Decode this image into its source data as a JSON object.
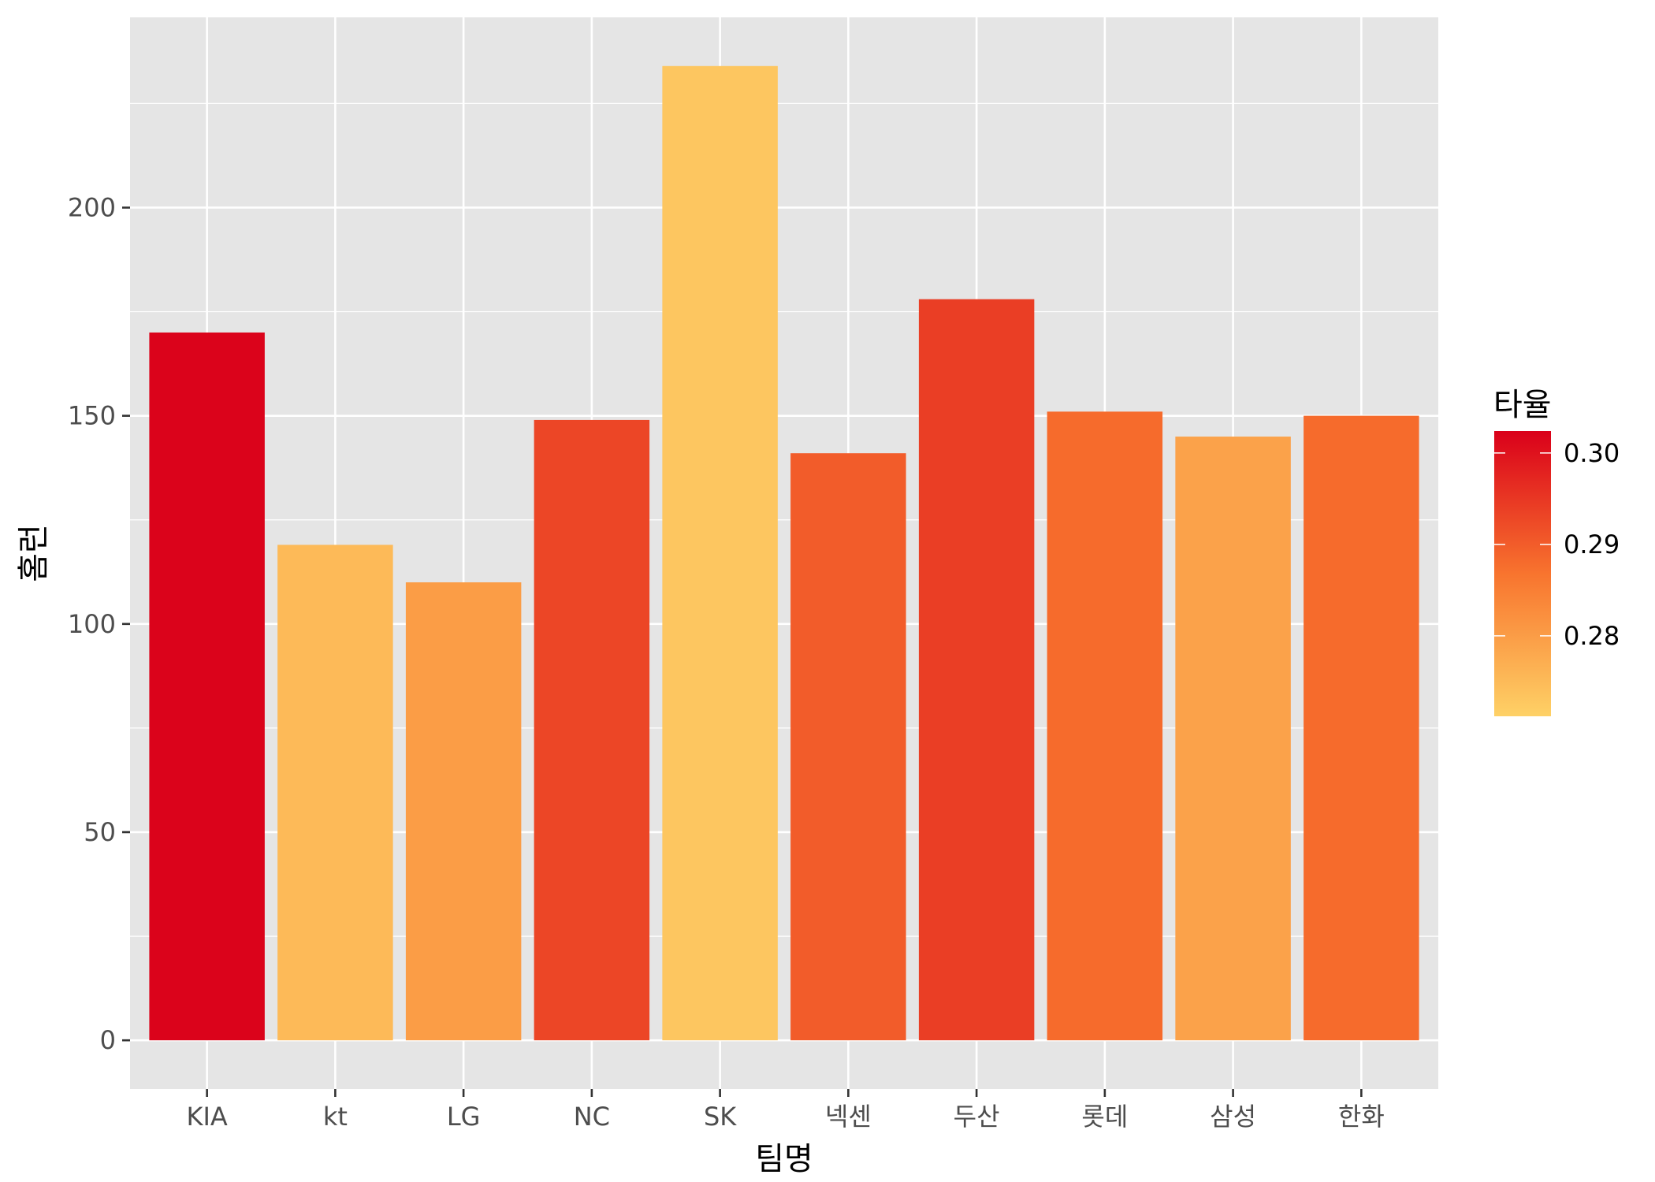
{
  "chart_data": {
    "type": "bar",
    "categories": [
      "KIA",
      "kt",
      "LG",
      "NC",
      "SK",
      "넥센",
      "두산",
      "롯데",
      "삼성",
      "한화"
    ],
    "values": [
      170,
      119,
      110,
      149,
      234,
      141,
      178,
      151,
      145,
      150
    ],
    "fill_values": [
      0.302,
      0.275,
      0.28,
      0.293,
      0.273,
      0.29,
      0.294,
      0.288,
      0.279,
      0.288
    ],
    "xlabel": "팀명",
    "ylabel": "홈런",
    "ylim": [
      -11.7,
      245.7
    ],
    "yticks": [
      0,
      50,
      100,
      150,
      200
    ],
    "grid": true,
    "legend": {
      "title": "타율",
      "placement": "right",
      "range": [
        0.2712,
        0.3024
      ],
      "ticks": [
        0.28,
        0.29,
        0.3
      ],
      "tick_labels": [
        "0.28",
        "0.29",
        "0.30"
      ],
      "low_color": "#FED166",
      "high_color": "#DA001A"
    },
    "colors": {
      "panel": "#E5E5E5",
      "gridline": "#FFFFFF",
      "tick_text": "#4D4D4D",
      "tick_mark": "#333333"
    }
  }
}
